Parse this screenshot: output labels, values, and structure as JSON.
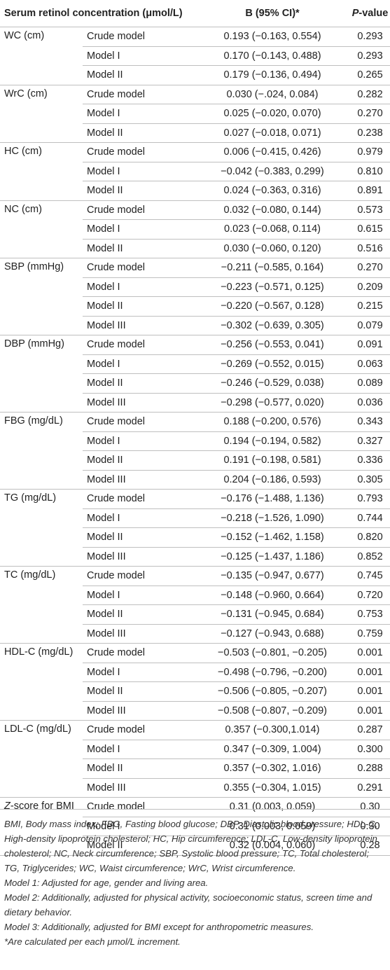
{
  "header": {
    "col1": "Serum retinol concentration (μmol/L)",
    "col3": "B (95% CI)*",
    "col4_italic": "P",
    "col4_rest": "-value"
  },
  "groups": [
    {
      "var": "WC (cm)",
      "rows": [
        {
          "model": "Crude model",
          "b": "0.193 (−0.163, 0.554)",
          "p": "0.293"
        },
        {
          "model": "Model I",
          "b": "0.170 (−0.143, 0.488)",
          "p": "0.293"
        },
        {
          "model": "Model II",
          "b": "0.179 (−0.136, 0.494)",
          "p": "0.265"
        }
      ]
    },
    {
      "var": "WrC (cm)",
      "rows": [
        {
          "model": "Crude model",
          "b": "0.030 (−.024, 0.084)",
          "p": "0.282"
        },
        {
          "model": "Model I",
          "b": "0.025 (−0.020, 0.070)",
          "p": "0.270"
        },
        {
          "model": "Model II",
          "b": "0.027 (−0.018, 0.071)",
          "p": "0.238"
        }
      ]
    },
    {
      "var": "HC (cm)",
      "rows": [
        {
          "model": "Crude model",
          "b": "0.006 (−0.415, 0.426)",
          "p": "0.979"
        },
        {
          "model": "Model I",
          "b": "−0.042 (−0.383, 0.299)",
          "p": "0.810"
        },
        {
          "model": "Model II",
          "b": "0.024 (−0.363, 0.316)",
          "p": "0.891"
        }
      ]
    },
    {
      "var": "NC (cm)",
      "rows": [
        {
          "model": "Crude model",
          "b": "0.032 (−0.080, 0.144)",
          "p": "0.573"
        },
        {
          "model": "Model I",
          "b": "0.023 (−0.068, 0.114)",
          "p": "0.615"
        },
        {
          "model": "Model II",
          "b": "0.030 (−0.060, 0.120)",
          "p": "0.516"
        }
      ]
    },
    {
      "var": "SBP (mmHg)",
      "rows": [
        {
          "model": "Crude model",
          "b": "−0.211 (−0.585, 0.164)",
          "p": "0.270"
        },
        {
          "model": "Model I",
          "b": "−0.223 (−0.571, 0.125)",
          "p": "0.209"
        },
        {
          "model": "Model II",
          "b": "−0.220 (−0.567, 0.128)",
          "p": "0.215"
        },
        {
          "model": "Model III",
          "b": "−0.302 (−0.639, 0.305)",
          "p": "0.079"
        }
      ]
    },
    {
      "var": "DBP (mmHg)",
      "rows": [
        {
          "model": "Crude model",
          "b": "−0.256 (−0.553, 0.041)",
          "p": "0.091"
        },
        {
          "model": "Model I",
          "b": "−0.269 (−0.552, 0.015)",
          "p": "0.063"
        },
        {
          "model": "Model II",
          "b": "−0.246 (−0.529, 0.038)",
          "p": "0.089"
        },
        {
          "model": "Model III",
          "b": "−0.298 (−0.577, 0.020)",
          "p": "0.036"
        }
      ]
    },
    {
      "var": "FBG (mg/dL)",
      "rows": [
        {
          "model": "Crude model",
          "b": "0.188 (−0.200, 0.576)",
          "p": "0.343"
        },
        {
          "model": "Model I",
          "b": "0.194 (−0.194, 0.582)",
          "p": "0.327"
        },
        {
          "model": "Model II",
          "b": "0.191 (−0.198, 0.581)",
          "p": "0.336"
        },
        {
          "model": "Model III",
          "b": "0.204 (−0.186, 0.593)",
          "p": "0.305"
        }
      ]
    },
    {
      "var": "TG (mg/dL)",
      "rows": [
        {
          "model": "Crude model",
          "b": "−0.176 (−1.488, 1.136)",
          "p": "0.793"
        },
        {
          "model": "Model I",
          "b": "−0.218 (−1.526, 1.090)",
          "p": "0.744"
        },
        {
          "model": "Model II",
          "b": "−0.152 (−1.462, 1.158)",
          "p": "0.820"
        },
        {
          "model": "Model III",
          "b": "−0.125 (−1.437, 1.186)",
          "p": "0.852"
        }
      ]
    },
    {
      "var": "TC (mg/dL)",
      "rows": [
        {
          "model": "Crude model",
          "b": "−0.135 (−0.947, 0.677)",
          "p": "0.745"
        },
        {
          "model": "Model I",
          "b": "−0.148 (−0.960, 0.664)",
          "p": "0.720"
        },
        {
          "model": "Model II",
          "b": "−0.131 (−0.945, 0.684)",
          "p": "0.753"
        },
        {
          "model": "Model III",
          "b": "−0.127 (−0.943, 0.688)",
          "p": "0.759"
        }
      ]
    },
    {
      "var": "HDL-C (mg/dL)",
      "rows": [
        {
          "model": "Crude model",
          "b": "−0.503 (−0.801, −0.205)",
          "p": "0.001"
        },
        {
          "model": "Model I",
          "b": "−0.498 (−0.796, −0.200)",
          "p": "0.001"
        },
        {
          "model": "Model II",
          "b": "−0.506 (−0.805, −0.207)",
          "p": "0.001"
        },
        {
          "model": "Model III",
          "b": "−0.508 (−0.807, −0.209)",
          "p": "0.001"
        }
      ]
    },
    {
      "var": "LDL-C (mg/dL)",
      "rows": [
        {
          "model": "Crude model",
          "b": "0.357 (−0.300,1.014)",
          "p": "0.287"
        },
        {
          "model": "Model I",
          "b": "0.347 (−0.309, 1.004)",
          "p": "0.300"
        },
        {
          "model": "Model II",
          "b": "0.357 (−0.302, 1.016)",
          "p": "0.288"
        },
        {
          "model": "Model III",
          "b": "0.355 (−0.304, 1.015)",
          "p": "0.291"
        }
      ]
    },
    {
      "var_italic": "Z",
      "var": "-score for BMI",
      "rows": [
        {
          "model": "Crude model",
          "b": "0.31 (0.003, 0.059)",
          "p": "0.30"
        },
        {
          "model": "Model I",
          "b": "0.31 (0.003, 0.059)",
          "p": "0.30"
        },
        {
          "model": "Model II",
          "b": "0.32 (0.004, 0.060)",
          "p": "0.28"
        }
      ]
    }
  ],
  "notes": {
    "abbrev": "BMI, Body mass index; FBG, Fasting blood glucose; DBP, Diastolic blood pressure; HDL-C, High-density lipoprotein cholesterol; HC, Hip circumference; LDL-C, Low-density lipoprotein cholesterol; NC, Neck circumference; SBP, Systolic blood pressure; TC, Total cholesterol; TG, Triglycerides; WC, Waist circumference; WrC, Wrist circumference.",
    "model1": "Model 1: Adjusted for age, gender and living area.",
    "model2": "Model 2: Additionally, adjusted for physical activity, socioeconomic status, screen time and dietary behavior.",
    "model3": "Model 3: Additionally, adjusted for BMI except for anthropometric measures.",
    "footnote": "*Are calculated per each μmol/L increment."
  }
}
